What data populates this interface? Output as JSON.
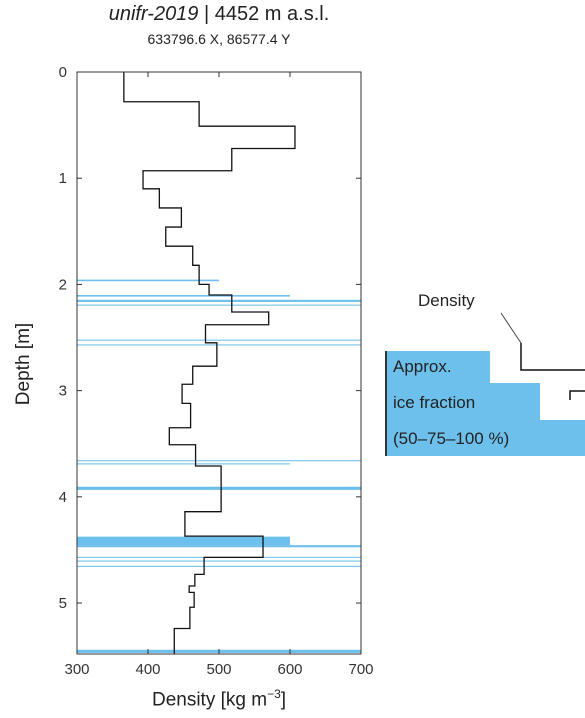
{
  "title": {
    "site": "unifr-2019",
    "separator": " | ",
    "elevation": "4452 m a.s.l.",
    "coords": "633796.6 X, 86577.4 Y"
  },
  "colors": {
    "density_line": "#111111",
    "ice_fill": "#6ec0ec",
    "axis": "#333333"
  },
  "chart_data": {
    "type": "line",
    "title": "unifr-2019 | 4452 m a.s.l.",
    "subtitle": "633796.6 X, 86577.4 Y",
    "xlabel": "Density [kg m",
    "xlabel_exp": "−3",
    "xlabel_close": "]",
    "ylabel": "Depth [m]",
    "xlim": [
      300,
      700
    ],
    "ylim": [
      0,
      5.48
    ],
    "y_inverted": true,
    "xticks": [
      300,
      400,
      500,
      600,
      700
    ],
    "yticks": [
      0,
      1,
      2,
      3,
      4,
      5
    ],
    "grid": false,
    "series": [
      {
        "name": "Density",
        "kind": "step",
        "segments": [
          {
            "top": 0.0,
            "bottom": 0.28,
            "density": 366
          },
          {
            "top": 0.28,
            "bottom": 0.51,
            "density": 472
          },
          {
            "top": 0.51,
            "bottom": 0.72,
            "density": 607
          },
          {
            "top": 0.72,
            "bottom": 0.93,
            "density": 518
          },
          {
            "top": 0.93,
            "bottom": 1.1,
            "density": 393
          },
          {
            "top": 1.1,
            "bottom": 1.28,
            "density": 416
          },
          {
            "top": 1.28,
            "bottom": 1.46,
            "density": 447
          },
          {
            "top": 1.46,
            "bottom": 1.64,
            "density": 425
          },
          {
            "top": 1.64,
            "bottom": 1.82,
            "density": 463
          },
          {
            "top": 1.82,
            "bottom": 2.0,
            "density": 472
          },
          {
            "top": 2.0,
            "bottom": 2.1,
            "density": 486
          },
          {
            "top": 2.1,
            "bottom": 2.26,
            "density": 518
          },
          {
            "top": 2.26,
            "bottom": 2.38,
            "density": 570
          },
          {
            "top": 2.38,
            "bottom": 2.55,
            "density": 481
          },
          {
            "top": 2.55,
            "bottom": 2.77,
            "density": 497
          },
          {
            "top": 2.77,
            "bottom": 2.94,
            "density": 463
          },
          {
            "top": 2.94,
            "bottom": 3.12,
            "density": 448
          },
          {
            "top": 3.12,
            "bottom": 3.35,
            "density": 460
          },
          {
            "top": 3.35,
            "bottom": 3.51,
            "density": 430
          },
          {
            "top": 3.51,
            "bottom": 3.71,
            "density": 467
          },
          {
            "top": 3.71,
            "bottom": 4.14,
            "density": 503
          },
          {
            "top": 4.14,
            "bottom": 4.37,
            "density": 452
          },
          {
            "top": 4.37,
            "bottom": 4.57,
            "density": 562
          },
          {
            "top": 4.57,
            "bottom": 4.73,
            "density": 479
          },
          {
            "top": 4.73,
            "bottom": 4.84,
            "density": 466
          },
          {
            "top": 4.84,
            "bottom": 4.9,
            "density": 458
          },
          {
            "top": 4.9,
            "bottom": 5.04,
            "density": 465
          },
          {
            "top": 5.04,
            "bottom": 5.24,
            "density": 459
          },
          {
            "top": 5.24,
            "bottom": 5.48,
            "density": 437
          }
        ]
      },
      {
        "name": "Approx. ice fraction (50–75–100 %)",
        "kind": "ice-layers",
        "layers": [
          {
            "top": 1.955,
            "bottom": 1.97,
            "fraction": 50
          },
          {
            "top": 2.1,
            "bottom": 2.115,
            "fraction": 75
          },
          {
            "top": 2.145,
            "bottom": 2.165,
            "fraction": 100
          },
          {
            "top": 2.19,
            "bottom": 2.2,
            "fraction": 100
          },
          {
            "top": 2.52,
            "bottom": 2.53,
            "fraction": 100
          },
          {
            "top": 2.565,
            "bottom": 2.575,
            "fraction": 100
          },
          {
            "top": 3.655,
            "bottom": 3.665,
            "fraction": 100
          },
          {
            "top": 3.685,
            "bottom": 3.695,
            "fraction": 75
          },
          {
            "top": 3.905,
            "bottom": 3.935,
            "fraction": 100
          },
          {
            "top": 4.375,
            "bottom": 4.455,
            "fraction": 75
          },
          {
            "top": 4.455,
            "bottom": 4.475,
            "fraction": 100
          },
          {
            "top": 4.565,
            "bottom": 4.575,
            "fraction": 100
          },
          {
            "top": 4.6,
            "bottom": 4.61,
            "fraction": 100
          },
          {
            "top": 4.65,
            "bottom": 4.66,
            "fraction": 100
          },
          {
            "top": 5.44,
            "bottom": 5.47,
            "fraction": 100
          }
        ]
      }
    ]
  },
  "legend": {
    "density_label": "Density",
    "ice_line1": "Approx.",
    "ice_line2": "ice fraction",
    "ice_line3": "(50–75–100 %)"
  }
}
